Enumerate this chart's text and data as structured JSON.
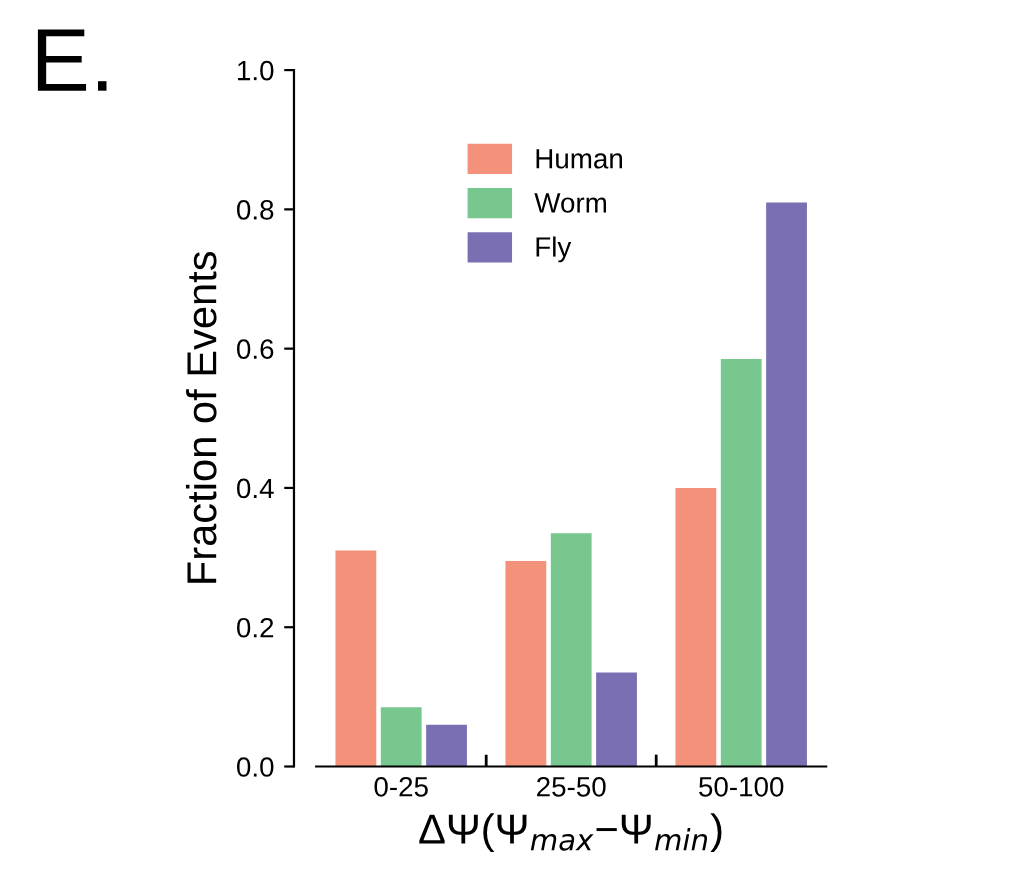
{
  "chart_data": {
    "type": "bar",
    "xlabel": "ΔΨ(Ψ$_{max}$−Ψ$_{min}$)",
    "ylabel": "Fraction of Events",
    "categories": [
      "0-25",
      "25-50",
      "50-100"
    ],
    "series": [
      {
        "name": "Human",
        "color": "#f4917a",
        "values": [
          0.31,
          0.295,
          0.4
        ]
      },
      {
        "name": "Worm",
        "color": "#77c78f",
        "values": [
          0.085,
          0.335,
          0.585
        ]
      },
      {
        "name": "Fly",
        "color": "#7b6fb3",
        "values": [
          0.06,
          0.135,
          0.81
        ]
      }
    ],
    "ylim": [
      0,
      1.0
    ],
    "yticks": [
      {
        "value": 0,
        "label": "0.0"
      },
      0.2,
      0.4,
      0.6,
      0.8,
      {
        "value": 1,
        "label": "1.0"
      }
    ],
    "grid": false,
    "legend": "top",
    "annotations": [
      "E."
    ]
  }
}
